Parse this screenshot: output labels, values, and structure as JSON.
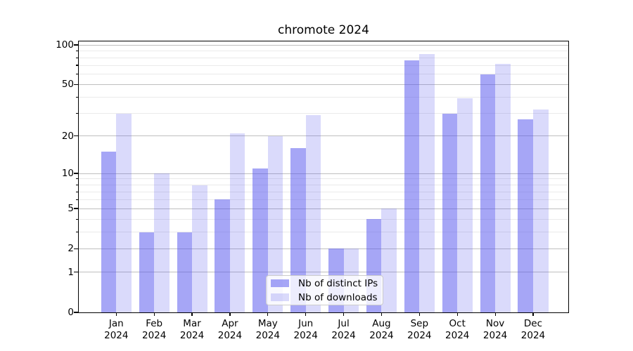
{
  "chart_data": {
    "type": "bar",
    "title": "chromote 2024",
    "categories": [
      "Jan",
      "Feb",
      "Mar",
      "Apr",
      "May",
      "Jun",
      "Jul",
      "Aug",
      "Sep",
      "Oct",
      "Nov",
      "Dec"
    ],
    "category_year": "2024",
    "series": [
      {
        "name": "Nb of distinct IPs",
        "color": "rgba(85,85,238,0.52)",
        "values": [
          15,
          3,
          3,
          6,
          11,
          16,
          2,
          4,
          76,
          30,
          60,
          27
        ]
      },
      {
        "name": "Nb of downloads",
        "color": "rgba(85,85,238,0.22)",
        "values": [
          30,
          10,
          8,
          21,
          20,
          29,
          2,
          5,
          85,
          39,
          72,
          32
        ]
      }
    ],
    "y_axis": {
      "scale": "log1p",
      "ticks_major": [
        0,
        1,
        2,
        5,
        10,
        20,
        50,
        100
      ],
      "ticks_minor": [
        3,
        4,
        6,
        7,
        8,
        9,
        30,
        40,
        60,
        70,
        80,
        90
      ],
      "range": [
        0,
        106
      ]
    },
    "x_axis": {
      "tick_label_format": "month-over-year"
    },
    "grid": {
      "major_color": "#bfbfbf",
      "minor_color": "#eaeaea"
    },
    "legend": {
      "position": "lower-center",
      "labels": [
        "Nb of distinct IPs",
        "Nb of downloads"
      ]
    }
  }
}
